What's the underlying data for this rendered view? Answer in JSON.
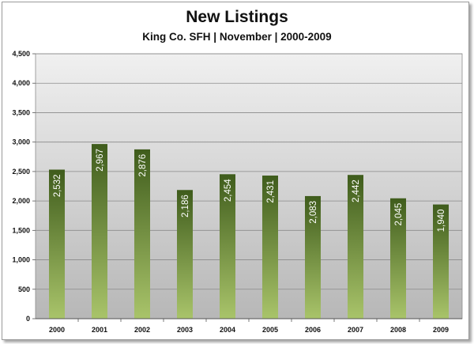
{
  "chart_data": {
    "type": "bar",
    "title": "New Listings",
    "subtitle": "King Co. SFH | November | 2000-2009",
    "xlabel": "",
    "ylabel": "",
    "categories": [
      "2000",
      "2001",
      "2002",
      "2003",
      "2004",
      "2005",
      "2006",
      "2007",
      "2008",
      "2009"
    ],
    "values": [
      2532,
      2967,
      2876,
      2186,
      2454,
      2431,
      2083,
      2442,
      2045,
      1940
    ],
    "value_labels": [
      "2,532",
      "2,967",
      "2,876",
      "2,186",
      "2,454",
      "2,431",
      "2,083",
      "2,442",
      "2,045",
      "1,940"
    ],
    "ylim": [
      0,
      4500
    ],
    "y_ticks": [
      0,
      500,
      1000,
      1500,
      2000,
      2500,
      3000,
      3500,
      4000,
      4500
    ],
    "y_tick_labels": [
      "0",
      "500",
      "1,000",
      "1,500",
      "2,000",
      "2,500",
      "3,000",
      "3,500",
      "4,000",
      "4,500"
    ],
    "grid": true,
    "legend": "none",
    "colors": {
      "bar_top": "#3f5c1c",
      "bar_bottom": "#a9c46a",
      "plot_bg_top": "#f0f0f0",
      "plot_bg_bottom": "#b7b7b7",
      "gridline": "#8a8a8a"
    }
  }
}
